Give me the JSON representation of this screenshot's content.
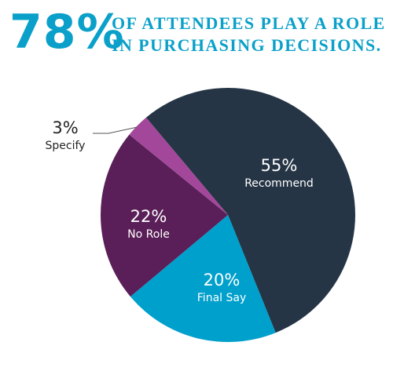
{
  "headline": {
    "stat": "78%",
    "line1": "OF ATTENDEES PLAY A ROLE",
    "line2": "IN PURCHASING DECISIONS."
  },
  "colors": {
    "accent": "#0aa0c9",
    "recommend": "#263546",
    "final_say": "#00a0cc",
    "no_role": "#5a1f58",
    "specify": "#a3479a",
    "label_light": "#ffffff",
    "label_dark": "#222222"
  },
  "chart_data": {
    "type": "pie",
    "title": "",
    "slices": [
      {
        "label": "Recommend",
        "value": 55,
        "pct_text": "55%"
      },
      {
        "label": "Final Say",
        "value": 20,
        "pct_text": "20%"
      },
      {
        "label": "No Role",
        "value": 22,
        "pct_text": "22%"
      },
      {
        "label": "Specify",
        "value": 3,
        "pct_text": "3%"
      }
    ]
  }
}
